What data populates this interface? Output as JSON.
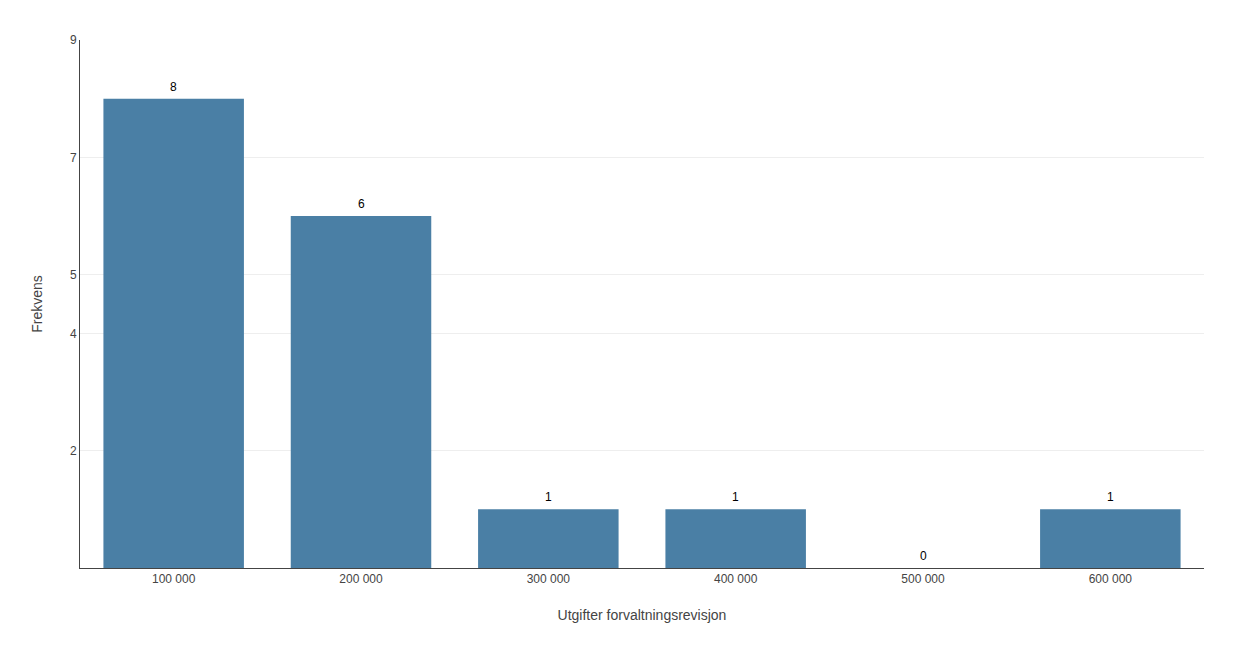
{
  "chart_data": {
    "type": "bar",
    "categories": [
      "100 000",
      "200 000",
      "300 000",
      "400 000",
      "500 000",
      "600 000"
    ],
    "values": [
      8,
      6,
      1,
      1,
      0,
      1
    ],
    "color": "#4a7fa5",
    "xlabel": "Utgifter forvaltningsrevisjon",
    "ylabel": "Frekvens",
    "ylim": [
      0,
      9
    ],
    "yticks": [
      2,
      4,
      5,
      7,
      9
    ],
    "grid": true,
    "data_labels": true
  }
}
